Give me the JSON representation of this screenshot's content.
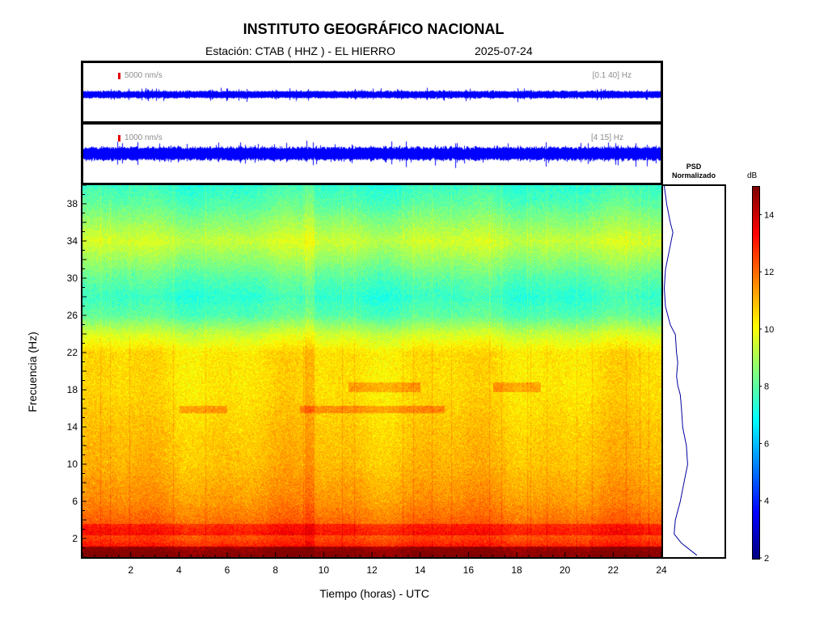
{
  "header": {
    "title": "INSTITUTO GEOGRÁFICO NACIONAL",
    "station": "Estación:  CTAB ( HHZ ) - EL HIERRO",
    "date": "2025-07-24"
  },
  "traces": [
    {
      "scale_label": "5000 nm/s",
      "band_label": "[0.1 40] Hz",
      "color": "#0000ff",
      "amplitude": 0.3
    },
    {
      "scale_label": "1000 nm/s",
      "band_label": "[4 15] Hz",
      "color": "#0000ff",
      "amplitude": 0.55
    }
  ],
  "chart_data": [
    {
      "type": "heatmap",
      "title": "",
      "xlabel": "Tiempo (horas) - UTC",
      "ylabel": "Frecuencia  (Hz)",
      "xlim": [
        0,
        24
      ],
      "ylim": [
        0,
        40
      ],
      "x_ticks": [
        2,
        4,
        6,
        8,
        10,
        12,
        14,
        16,
        18,
        20,
        22,
        24
      ],
      "y_ticks": [
        2,
        6,
        10,
        14,
        18,
        22,
        26,
        30,
        34,
        38
      ],
      "colormap": "jet",
      "color_range_db": [
        2,
        15
      ],
      "approx_level_db_by_freq": [
        {
          "f": 0.5,
          "db": 13.5
        },
        {
          "f": 2,
          "db": 12.5
        },
        {
          "f": 6,
          "db": 11.5
        },
        {
          "f": 10,
          "db": 11.0
        },
        {
          "f": 14,
          "db": 10.8
        },
        {
          "f": 18,
          "db": 10.5
        },
        {
          "f": 22,
          "db": 10.5
        },
        {
          "f": 24,
          "db": 9.5
        },
        {
          "f": 26,
          "db": 8.0
        },
        {
          "f": 28,
          "db": 7.5
        },
        {
          "f": 30,
          "db": 8.0
        },
        {
          "f": 34,
          "db": 9.5
        },
        {
          "f": 38,
          "db": 8.0
        },
        {
          "f": 40,
          "db": 7.5
        }
      ]
    },
    {
      "type": "line",
      "title": "PSD\nNormalizado",
      "xlabel": "",
      "ylabel": "",
      "ylim": [
        0,
        40
      ],
      "x": [
        0.55,
        0.3,
        0.18,
        0.2,
        0.28,
        0.34,
        0.4,
        0.38,
        0.32,
        0.3,
        0.28,
        0.24,
        0.22,
        0.24,
        0.22,
        0.2,
        0.12,
        0.04,
        0.02,
        0.04,
        0.1,
        0.16,
        0.12,
        0.06,
        0.02
      ],
      "y": [
        0.2,
        1.5,
        2.5,
        4,
        6,
        8,
        10,
        12,
        14,
        16,
        17.5,
        18.5,
        19.5,
        21,
        22,
        24,
        25,
        27,
        29,
        31,
        33,
        35,
        36,
        38,
        40
      ]
    },
    {
      "type": "colorbar",
      "title": "dB",
      "ticks": [
        2,
        4,
        6,
        8,
        10,
        12,
        14
      ],
      "range": [
        2,
        15
      ]
    }
  ]
}
